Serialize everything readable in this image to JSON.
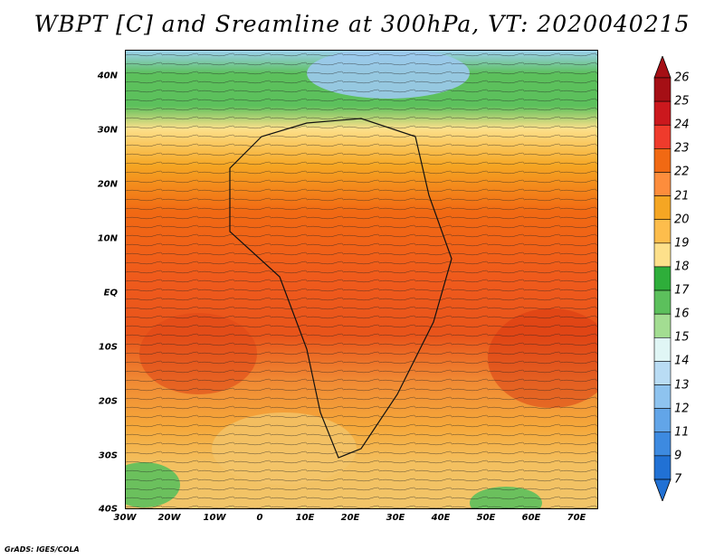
{
  "title": "WBPT [C] and Sreamline at 300hPa, VT: 2020040215",
  "footer": "GrADS: IGES/COLA",
  "map": {
    "lat_labels": [
      "40N",
      "30N",
      "20N",
      "10N",
      "EQ",
      "10S",
      "20S",
      "30S",
      "40S"
    ],
    "lon_labels": [
      "30W",
      "20W",
      "10W",
      "0",
      "10E",
      "20E",
      "30E",
      "40E",
      "50E",
      "60E",
      "70E"
    ],
    "lat_range": [
      -40,
      44
    ],
    "lon_range": [
      -30,
      75
    ]
  },
  "colorbar": {
    "labels": [
      "26",
      "25",
      "24",
      "23",
      "22",
      "21",
      "20",
      "19",
      "18",
      "17",
      "16",
      "15",
      "14",
      "13",
      "12",
      "11",
      "9",
      "7"
    ],
    "colors": [
      "#a50f15",
      "#cb181d",
      "#ef3b2c",
      "#f16913",
      "#fd8d3c",
      "#f5a623",
      "#fdbd4c",
      "#fde08b",
      "#2eae3a",
      "#5cc05c",
      "#a3dd92",
      "#e0f6f5",
      "#b9dcf4",
      "#8ec3ef",
      "#62a5e8",
      "#3d8ae0",
      "#2171d4"
    ]
  }
}
